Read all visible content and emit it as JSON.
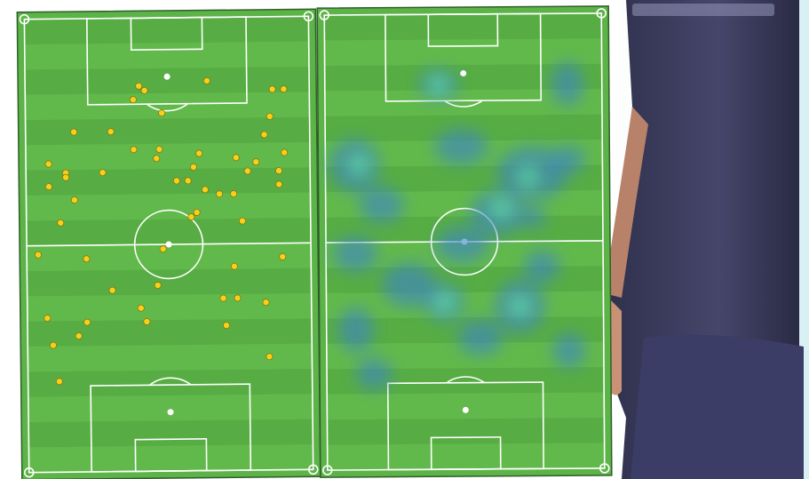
{
  "chart_data": {
    "type": "scatter",
    "x": [
      40,
      42,
      38,
      64,
      87,
      91,
      48,
      86,
      17,
      30,
      84,
      38,
      47,
      46,
      61,
      91,
      8,
      74,
      81,
      14,
      27,
      78,
      89,
      14,
      59,
      8,
      53,
      57,
      63,
      68,
      73,
      89,
      17,
      60,
      58,
      12,
      76,
      4,
      48,
      21,
      73,
      90,
      30,
      46,
      69,
      74,
      84,
      40,
      7,
      21,
      42,
      70,
      18,
      9,
      85,
      11
    ],
    "y": [
      15,
      16,
      18,
      14,
      16,
      16,
      21,
      22,
      25,
      25,
      26,
      29,
      29,
      31,
      30,
      30,
      32,
      31,
      32,
      34,
      34,
      34,
      34,
      35,
      33,
      37,
      36,
      36,
      38,
      39,
      39,
      37,
      40,
      43,
      44,
      45,
      45,
      52,
      51,
      53,
      55,
      53,
      60,
      59,
      62,
      62,
      63,
      64,
      66,
      67,
      67,
      68,
      70,
      72,
      75,
      80
    ],
    "color": "#f4d21c",
    "xlim": [
      0,
      100
    ],
    "ylim": [
      100,
      0
    ]
  }
}
